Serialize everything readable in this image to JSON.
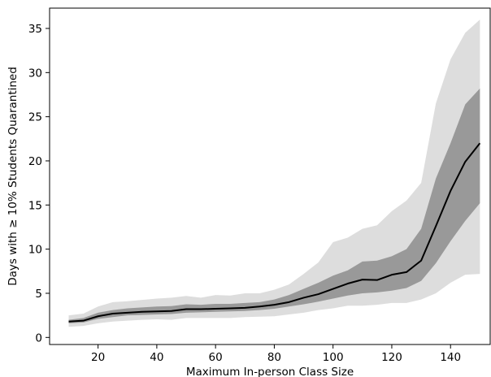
{
  "chart_data": {
    "type": "line",
    "title": "",
    "xlabel": "Maximum In-person Class Size",
    "ylabel": "Days with ≥ 10% Students Quarantined",
    "xlim": [
      3.5,
      153.5
    ],
    "ylim": [
      -0.8,
      37.3
    ],
    "xticks": [
      20,
      40,
      60,
      80,
      100,
      120,
      140
    ],
    "yticks": [
      0,
      5,
      10,
      15,
      20,
      25,
      30,
      35
    ],
    "grid": false,
    "legend": "none",
    "x": [
      10,
      15,
      20,
      25,
      30,
      35,
      40,
      45,
      50,
      55,
      60,
      65,
      70,
      75,
      80,
      85,
      90,
      95,
      100,
      105,
      110,
      115,
      120,
      125,
      130,
      135,
      140,
      145,
      150
    ],
    "series": [
      {
        "role": "median",
        "color": "#000000",
        "values": [
          1.8,
          1.9,
          2.4,
          2.7,
          2.8,
          2.9,
          2.95,
          3.0,
          3.2,
          3.2,
          3.25,
          3.3,
          3.35,
          3.5,
          3.7,
          4.0,
          4.5,
          4.9,
          5.5,
          6.1,
          6.55,
          6.5,
          7.1,
          7.4,
          8.7,
          12.6,
          16.6,
          19.9,
          22.0
        ]
      },
      {
        "role": "inner band",
        "color": "#999999",
        "lower": [
          1.6,
          1.7,
          2.1,
          2.3,
          2.5,
          2.55,
          2.6,
          2.65,
          2.8,
          2.85,
          2.9,
          2.95,
          3.0,
          3.1,
          3.25,
          3.5,
          3.75,
          4.05,
          4.4,
          4.75,
          5.0,
          5.1,
          5.3,
          5.6,
          6.4,
          8.4,
          10.9,
          13.2,
          15.2
        ],
        "upper": [
          2.0,
          2.2,
          2.8,
          3.1,
          3.3,
          3.4,
          3.5,
          3.55,
          3.75,
          3.7,
          3.8,
          3.8,
          3.9,
          4.0,
          4.3,
          4.8,
          5.5,
          6.2,
          7.0,
          7.6,
          8.6,
          8.7,
          9.2,
          10.0,
          12.3,
          18.0,
          22.0,
          26.4,
          28.2
        ]
      },
      {
        "role": "outer band",
        "color": "#dddddd",
        "lower": [
          1.2,
          1.3,
          1.6,
          1.8,
          1.9,
          2.0,
          2.05,
          2.0,
          2.2,
          2.2,
          2.2,
          2.2,
          2.3,
          2.35,
          2.4,
          2.6,
          2.8,
          3.1,
          3.3,
          3.6,
          3.6,
          3.7,
          3.9,
          3.9,
          4.3,
          5.0,
          6.2,
          7.1,
          7.2
        ],
        "upper": [
          2.5,
          2.7,
          3.5,
          4.0,
          4.1,
          4.25,
          4.4,
          4.5,
          4.7,
          4.5,
          4.8,
          4.75,
          5.0,
          5.0,
          5.4,
          6.0,
          7.2,
          8.5,
          10.8,
          11.3,
          12.3,
          12.7,
          14.3,
          15.5,
          17.5,
          26.5,
          31.5,
          34.5,
          36.0
        ]
      }
    ]
  }
}
